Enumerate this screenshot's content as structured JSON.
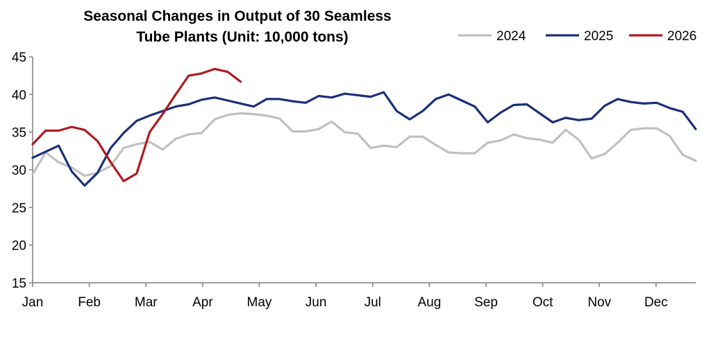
{
  "chart_data": {
    "type": "line",
    "title_lines": [
      "Seasonal Changes in Output of 30 Seamless",
      "Tube Plants (Unit: 10,000 tons)"
    ],
    "xlabel": "",
    "ylabel": "",
    "ylim": [
      15,
      45
    ],
    "yticks": [
      15,
      20,
      25,
      30,
      35,
      40,
      45
    ],
    "month_labels": [
      "Jan",
      "Feb",
      "Mar",
      "Apr",
      "May",
      "Jun",
      "Jul",
      "Aug",
      "Sep",
      "Oct",
      "Nov",
      "Dec"
    ],
    "x_period_count": 52,
    "legend_position": "top-right",
    "grid": false,
    "series": [
      {
        "name": "2024",
        "color": "#bfbfbf",
        "values": [
          29.4,
          32.3,
          31.0,
          30.3,
          29.2,
          29.6,
          30.5,
          32.9,
          33.4,
          33.7,
          32.7,
          34.1,
          34.7,
          34.9,
          36.7,
          37.3,
          37.5,
          37.4,
          37.2,
          36.8,
          35.1,
          35.1,
          35.4,
          36.4,
          35.0,
          34.8,
          32.9,
          33.2,
          33.0,
          34.4,
          34.4,
          33.3,
          32.3,
          32.2,
          32.2,
          33.6,
          33.9,
          34.7,
          34.2,
          34.0,
          33.6,
          35.3,
          34.0,
          31.5,
          32.1,
          33.6,
          35.3,
          35.5,
          35.5,
          34.5,
          32.0,
          31.2
        ]
      },
      {
        "name": "2025",
        "color": "#1a2f7a",
        "values": [
          31.6,
          32.4,
          33.2,
          29.8,
          27.9,
          29.6,
          32.9,
          34.9,
          36.5,
          37.2,
          37.8,
          38.4,
          38.7,
          39.3,
          39.6,
          39.2,
          38.8,
          38.4,
          39.4,
          39.4,
          39.1,
          38.9,
          39.8,
          39.6,
          40.1,
          39.9,
          39.7,
          40.3,
          37.8,
          36.7,
          37.8,
          39.4,
          40.0,
          39.2,
          38.4,
          36.3,
          37.6,
          38.6,
          38.7,
          37.5,
          36.3,
          36.9,
          36.6,
          36.8,
          38.5,
          39.4,
          39.0,
          38.8,
          38.9,
          38.2,
          37.7,
          35.4
        ]
      },
      {
        "name": "2026",
        "color": "#b0191e",
        "values": [
          33.4,
          35.2,
          35.2,
          35.7,
          35.3,
          33.8,
          31.0,
          28.5,
          29.5,
          35.0,
          37.4,
          40.0,
          42.5,
          42.8,
          43.4,
          43.0,
          41.7
        ]
      }
    ]
  }
}
